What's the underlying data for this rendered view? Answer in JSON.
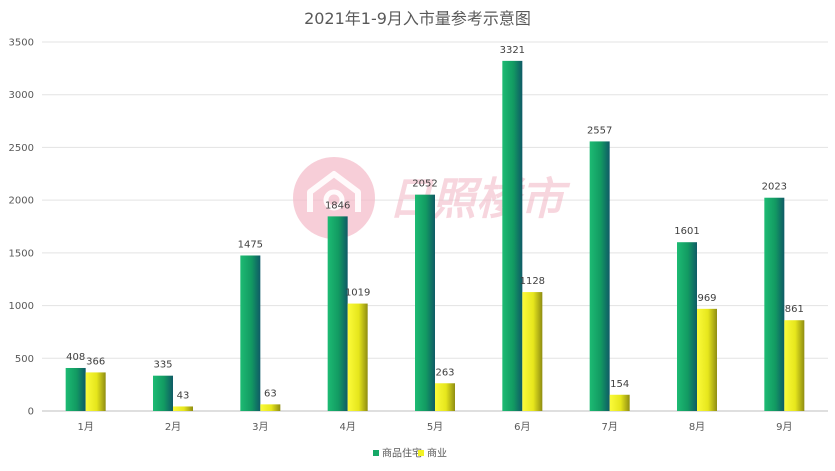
{
  "watermark": {
    "text": "日照楼市"
  },
  "chart_data": {
    "type": "bar",
    "title": "2021年1-9月入市量参考示意图",
    "categories": [
      "1月",
      "2月",
      "3月",
      "4月",
      "5月",
      "6月",
      "7月",
      "8月",
      "9月"
    ],
    "series": [
      {
        "name": "商品住宅",
        "values": [
          408,
          335,
          1475,
          1846,
          2052,
          3321,
          2557,
          1601,
          2023
        ],
        "color": "#16a867"
      },
      {
        "name": "商业",
        "values": [
          366,
          43,
          63,
          1019,
          263,
          1128,
          154,
          969,
          861
        ],
        "color": "#f2f224"
      }
    ],
    "ylim": [
      0,
      3500
    ],
    "yticks": [
      0,
      500,
      1000,
      1500,
      2000,
      2500,
      3000,
      3500
    ],
    "xlabel": "",
    "ylabel": "",
    "grid": true,
    "legend": "bottom-center",
    "data_labels": true
  }
}
